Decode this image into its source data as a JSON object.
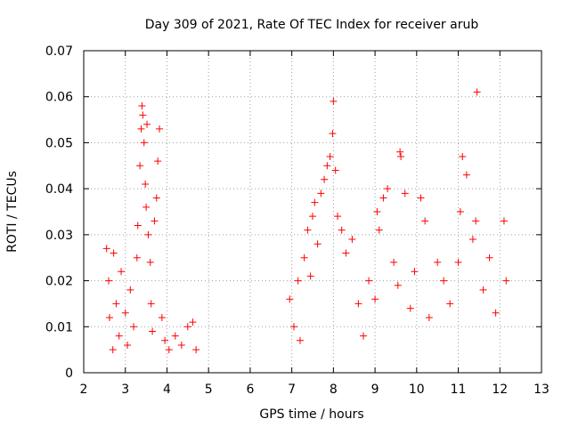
{
  "chart_data": {
    "type": "scatter",
    "title": "Day 309 of 2021, Rate Of TEC Index for receiver arub",
    "xlabel": "GPS time / hours",
    "ylabel": "ROTI / TECUs",
    "xlim": [
      2,
      13
    ],
    "ylim": [
      0,
      0.07
    ],
    "xticks": [
      "2",
      "3",
      "4",
      "5",
      "6",
      "7",
      "8",
      "9",
      "10",
      "11",
      "12",
      "13"
    ],
    "yticks": [
      "0",
      "0.01",
      "0.02",
      "0.03",
      "0.04",
      "0.05",
      "0.06",
      "0.07"
    ],
    "grid": true,
    "marker": "+",
    "color": "#ff0000",
    "series": [
      {
        "name": "ROTI",
        "x": [
          2.55,
          2.6,
          2.62,
          2.7,
          2.72,
          2.78,
          2.85,
          2.9,
          3.0,
          3.05,
          3.12,
          3.2,
          3.28,
          3.3,
          3.35,
          3.38,
          3.4,
          3.42,
          3.45,
          3.48,
          3.5,
          3.52,
          3.55,
          3.6,
          3.62,
          3.65,
          3.7,
          3.75,
          3.78,
          3.82,
          3.88,
          3.95,
          4.05,
          4.2,
          4.35,
          4.5,
          4.62,
          4.7,
          6.95,
          7.05,
          7.15,
          7.2,
          7.3,
          7.38,
          7.45,
          7.5,
          7.55,
          7.62,
          7.7,
          7.78,
          7.85,
          7.92,
          7.98,
          8.0,
          8.05,
          8.1,
          8.2,
          8.3,
          8.45,
          8.6,
          8.72,
          8.85,
          9.0,
          9.05,
          9.1,
          9.2,
          9.3,
          9.45,
          9.55,
          9.6,
          9.62,
          9.72,
          9.85,
          9.95,
          10.1,
          10.2,
          10.3,
          10.5,
          10.65,
          10.8,
          11.0,
          11.05,
          11.1,
          11.2,
          11.35,
          11.42,
          11.45,
          11.6,
          11.75,
          11.9,
          12.1,
          12.15
        ],
        "y": [
          0.027,
          0.02,
          0.012,
          0.005,
          0.026,
          0.015,
          0.008,
          0.022,
          0.013,
          0.006,
          0.018,
          0.01,
          0.025,
          0.032,
          0.045,
          0.053,
          0.058,
          0.056,
          0.05,
          0.041,
          0.036,
          0.054,
          0.03,
          0.024,
          0.015,
          0.009,
          0.033,
          0.038,
          0.046,
          0.053,
          0.012,
          0.007,
          0.005,
          0.008,
          0.006,
          0.01,
          0.011,
          0.005,
          0.016,
          0.01,
          0.02,
          0.007,
          0.025,
          0.031,
          0.021,
          0.034,
          0.037,
          0.028,
          0.039,
          0.042,
          0.045,
          0.047,
          0.052,
          0.059,
          0.044,
          0.034,
          0.031,
          0.026,
          0.029,
          0.015,
          0.008,
          0.02,
          0.016,
          0.035,
          0.031,
          0.038,
          0.04,
          0.024,
          0.019,
          0.048,
          0.047,
          0.039,
          0.014,
          0.022,
          0.038,
          0.033,
          0.012,
          0.024,
          0.02,
          0.015,
          0.024,
          0.035,
          0.047,
          0.043,
          0.029,
          0.033,
          0.061,
          0.018,
          0.025,
          0.013,
          0.033,
          0.02
        ]
      }
    ]
  }
}
